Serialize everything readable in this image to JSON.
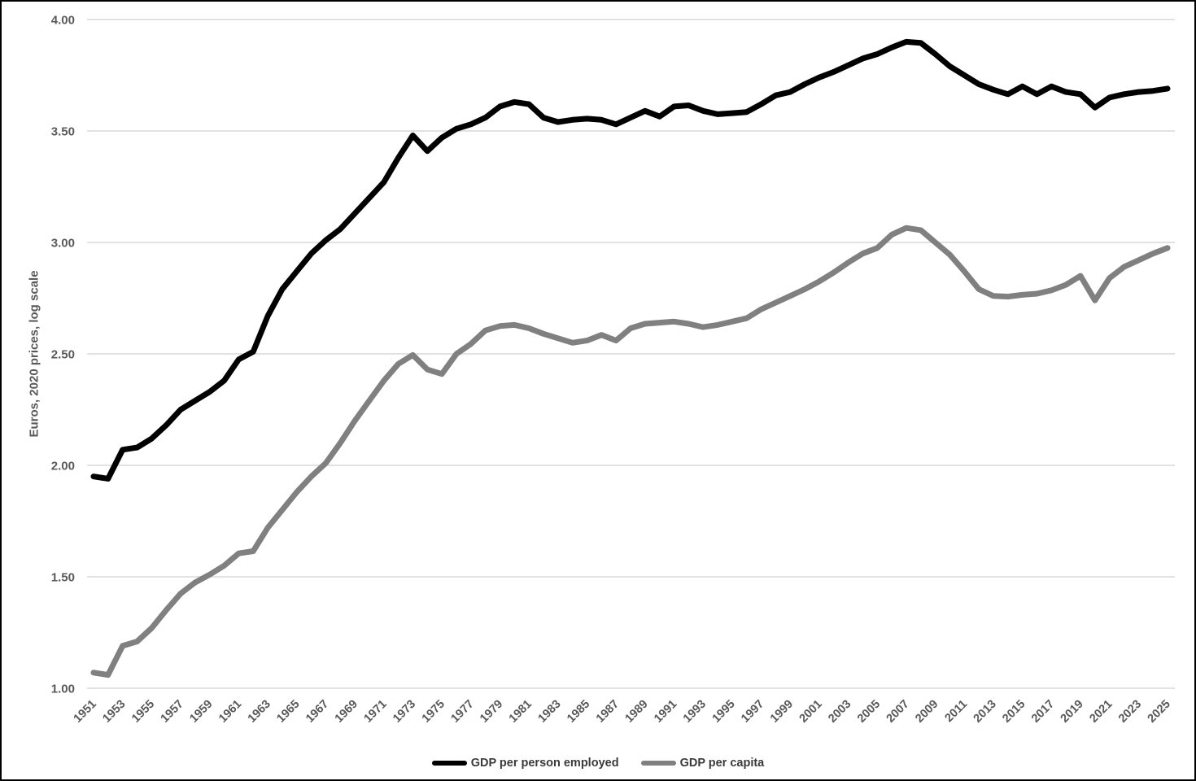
{
  "chart_data": {
    "type": "line",
    "title": "",
    "xlabel": "",
    "ylabel": "Euros, 2020 prices, log scale",
    "ylim": [
      1.0,
      4.0
    ],
    "y_ticks": [
      4.0,
      3.5,
      3.0,
      2.5,
      2.0,
      1.5,
      1.0
    ],
    "y_tick_labels": [
      "4.00",
      "3.50",
      "3.00",
      "2.50",
      "2.00",
      "1.50",
      "1.00"
    ],
    "grid": "horizontal",
    "legend_position": "bottom",
    "x_tick_interval": 2,
    "x": [
      1951,
      1952,
      1953,
      1954,
      1955,
      1956,
      1957,
      1958,
      1959,
      1960,
      1961,
      1962,
      1963,
      1964,
      1965,
      1966,
      1967,
      1968,
      1969,
      1970,
      1971,
      1972,
      1973,
      1974,
      1975,
      1976,
      1977,
      1978,
      1979,
      1980,
      1981,
      1982,
      1983,
      1984,
      1985,
      1986,
      1987,
      1988,
      1989,
      1990,
      1991,
      1992,
      1993,
      1994,
      1995,
      1996,
      1997,
      1998,
      1999,
      2000,
      2001,
      2002,
      2003,
      2004,
      2005,
      2006,
      2007,
      2008,
      2009,
      2010,
      2011,
      2012,
      2013,
      2014,
      2015,
      2016,
      2017,
      2018,
      2019,
      2020,
      2021,
      2022,
      2023,
      2024,
      2025
    ],
    "series": [
      {
        "name": "GDP per person employed",
        "color": "#000000",
        "values": [
          1.95,
          1.94,
          2.07,
          2.08,
          2.12,
          2.18,
          2.25,
          2.29,
          2.33,
          2.38,
          2.475,
          2.51,
          2.67,
          2.79,
          2.87,
          2.95,
          3.01,
          3.06,
          3.13,
          3.2,
          3.27,
          3.38,
          3.48,
          3.41,
          3.47,
          3.51,
          3.53,
          3.56,
          3.61,
          3.63,
          3.62,
          3.56,
          3.54,
          3.55,
          3.555,
          3.55,
          3.53,
          3.56,
          3.59,
          3.565,
          3.61,
          3.615,
          3.59,
          3.575,
          3.58,
          3.585,
          3.62,
          3.66,
          3.675,
          3.71,
          3.74,
          3.765,
          3.795,
          3.825,
          3.845,
          3.875,
          3.9,
          3.895,
          3.845,
          3.79,
          3.75,
          3.71,
          3.685,
          3.665,
          3.7,
          3.665,
          3.7,
          3.675,
          3.665,
          3.605,
          3.65,
          3.665,
          3.675,
          3.68,
          3.69
        ]
      },
      {
        "name": "GDP per capita",
        "color": "#808080",
        "values": [
          1.07,
          1.06,
          1.19,
          1.21,
          1.27,
          1.35,
          1.425,
          1.475,
          1.51,
          1.55,
          1.605,
          1.615,
          1.72,
          1.8,
          1.88,
          1.95,
          2.01,
          2.1,
          2.2,
          2.29,
          2.38,
          2.455,
          2.495,
          2.43,
          2.41,
          2.5,
          2.545,
          2.605,
          2.625,
          2.63,
          2.615,
          2.59,
          2.57,
          2.55,
          2.56,
          2.585,
          2.56,
          2.615,
          2.635,
          2.64,
          2.645,
          2.635,
          2.62,
          2.63,
          2.645,
          2.66,
          2.7,
          2.73,
          2.76,
          2.79,
          2.825,
          2.865,
          2.91,
          2.95,
          2.975,
          3.035,
          3.065,
          3.055,
          3.0,
          2.945,
          2.87,
          2.79,
          2.76,
          2.757,
          2.765,
          2.77,
          2.785,
          2.81,
          2.85,
          2.74,
          2.84,
          2.89,
          2.92,
          2.95,
          2.975
        ]
      }
    ]
  }
}
